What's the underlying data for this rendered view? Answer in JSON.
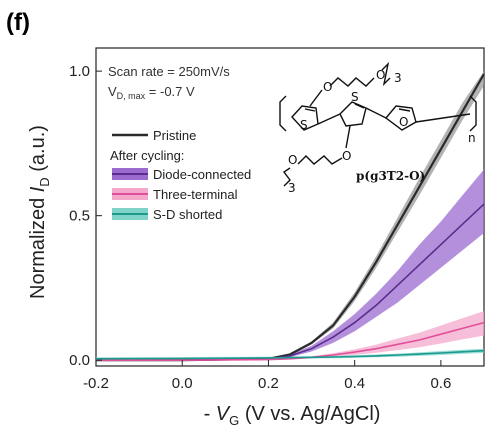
{
  "chart_data": {
    "type": "line",
    "panel_label": "(f)",
    "xlabel_prefix": "- ",
    "xlabel_var": "V",
    "xlabel_sub": "G",
    "xlabel_unit": " (V vs. Ag/AgCl)",
    "ylabel_prefix": "Normalized ",
    "ylabel_var": "I",
    "ylabel_sub": "D",
    "ylabel_unit": " (a.u.)",
    "xlim": [
      -0.2,
      0.7
    ],
    "ylim": [
      -0.02,
      1.08
    ],
    "xticks": [
      -0.2,
      0.0,
      0.2,
      0.4,
      0.6
    ],
    "xtick_labels": [
      "-0.2",
      "0.0",
      "0.2",
      "0.4",
      "0.6"
    ],
    "yticks": [
      0.0,
      0.5,
      1.0
    ],
    "ytick_labels": [
      "0.0",
      "0.5",
      "1.0"
    ],
    "annotation_line1": "Scan rate = 250mV/s",
    "annotation_line2_main": "V",
    "annotation_line2_sub": "D, max",
    "annotation_line2_rest": " = -0.7 V",
    "legend_group_label": "After cycling:",
    "polymer_name": "p(g3T2-O)",
    "chem_labels": {
      "sulfur": "S",
      "oxygen": "O",
      "subscript3": "3",
      "n": "n"
    },
    "series": [
      {
        "name": "Pristine",
        "color": "#2b2b2b",
        "band_color": "#9a9a9a",
        "x": [
          -0.2,
          0.0,
          0.2,
          0.25,
          0.3,
          0.35,
          0.4,
          0.45,
          0.5,
          0.55,
          0.6,
          0.65,
          0.7
        ],
        "y": [
          0.0,
          0.0,
          0.005,
          0.02,
          0.06,
          0.12,
          0.22,
          0.34,
          0.47,
          0.6,
          0.73,
          0.86,
          0.99
        ],
        "y_low": [
          0.0,
          0.0,
          0.004,
          0.018,
          0.055,
          0.11,
          0.205,
          0.32,
          0.445,
          0.57,
          0.7,
          0.83,
          0.95
        ],
        "y_high": [
          0.0,
          0.0,
          0.006,
          0.022,
          0.065,
          0.13,
          0.235,
          0.36,
          0.495,
          0.63,
          0.76,
          0.89,
          1.0
        ]
      },
      {
        "name": "Diode-connected",
        "color": "#5a2d8c",
        "band_color": "#9b6bd0",
        "x": [
          -0.2,
          0.0,
          0.2,
          0.25,
          0.3,
          0.35,
          0.4,
          0.45,
          0.5,
          0.55,
          0.6,
          0.65,
          0.7
        ],
        "y": [
          0.0,
          0.0,
          0.004,
          0.015,
          0.04,
          0.08,
          0.13,
          0.19,
          0.26,
          0.33,
          0.4,
          0.47,
          0.54
        ],
        "y_low": [
          0.0,
          0.0,
          0.003,
          0.01,
          0.03,
          0.06,
          0.1,
          0.15,
          0.2,
          0.26,
          0.32,
          0.38,
          0.44
        ],
        "y_high": [
          0.0,
          0.0,
          0.005,
          0.02,
          0.05,
          0.1,
          0.16,
          0.23,
          0.31,
          0.4,
          0.48,
          0.57,
          0.66
        ]
      },
      {
        "name": "Three-terminal",
        "color": "#e0509a",
        "band_color": "#f4a8cc",
        "x": [
          -0.2,
          0.0,
          0.2,
          0.25,
          0.3,
          0.35,
          0.4,
          0.45,
          0.5,
          0.55,
          0.6,
          0.65,
          0.7
        ],
        "y": [
          0.0,
          0.0,
          0.002,
          0.005,
          0.01,
          0.018,
          0.028,
          0.04,
          0.055,
          0.07,
          0.09,
          0.11,
          0.13
        ],
        "y_low": [
          0.0,
          0.0,
          0.0015,
          0.003,
          0.006,
          0.012,
          0.018,
          0.026,
          0.035,
          0.045,
          0.058,
          0.072,
          0.085
        ],
        "y_high": [
          0.0,
          0.0,
          0.003,
          0.007,
          0.014,
          0.024,
          0.038,
          0.054,
          0.075,
          0.095,
          0.12,
          0.145,
          0.17
        ]
      },
      {
        "name": "S-D shorted",
        "color": "#1b9a8e",
        "band_color": "#7fd3c8",
        "x": [
          -0.2,
          0.0,
          0.2,
          0.25,
          0.3,
          0.35,
          0.4,
          0.45,
          0.5,
          0.55,
          0.6,
          0.65,
          0.7
        ],
        "y": [
          0.005,
          0.006,
          0.008,
          0.009,
          0.01,
          0.011,
          0.013,
          0.015,
          0.018,
          0.021,
          0.025,
          0.029,
          0.033
        ],
        "y_low": [
          0.0,
          0.002,
          0.004,
          0.005,
          0.006,
          0.007,
          0.008,
          0.01,
          0.012,
          0.015,
          0.018,
          0.022,
          0.025
        ],
        "y_high": [
          0.01,
          0.011,
          0.012,
          0.013,
          0.014,
          0.015,
          0.017,
          0.02,
          0.023,
          0.027,
          0.032,
          0.036,
          0.04
        ]
      }
    ],
    "grid": false,
    "legend_position": "upper-left"
  }
}
